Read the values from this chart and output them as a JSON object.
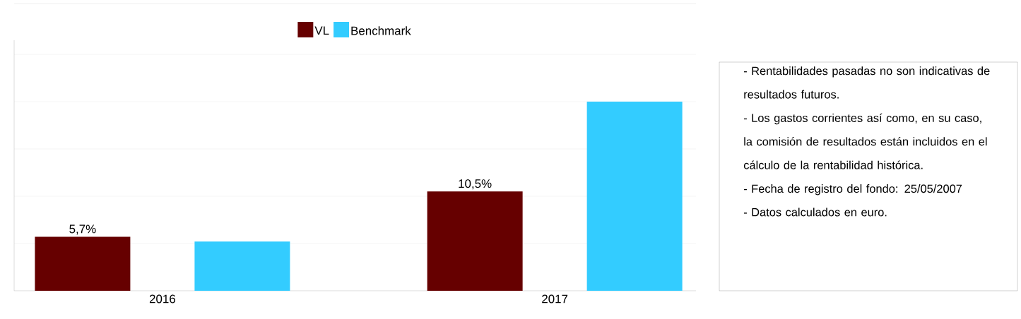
{
  "chart_data": {
    "type": "bar",
    "categories": [
      "2016",
      "2017"
    ],
    "series": [
      {
        "name": "VL",
        "color": "#660000",
        "values": [
          5.7,
          10.5
        ],
        "value_labels": [
          "5,7%",
          "10,5%"
        ]
      },
      {
        "name": "Benchmark",
        "color": "#33ccff",
        "values": [
          5.2,
          20.0
        ]
      }
    ],
    "ylim": [
      0,
      26.5
    ],
    "yticks": [
      {
        "value": 5,
        "label": null
      },
      {
        "value": 10,
        "label": null
      },
      {
        "value": 15,
        "label": null
      },
      {
        "value": 20,
        "label": null
      },
      {
        "value": 25,
        "label": null
      }
    ],
    "tick_labels": "x",
    "grid": "y",
    "legend": "top",
    "annotations": [
      "- Rentabilidades pasadas no son indicativas de resultados futuros.",
      "- Los gastos corrientes así como, en su caso, la comisión de resultados están incluidos en el cálculo de la rentabilidad histórica.",
      "- Fecha de registro del fondo: 25/05/2007",
      "- Datos calculados en euro."
    ]
  }
}
